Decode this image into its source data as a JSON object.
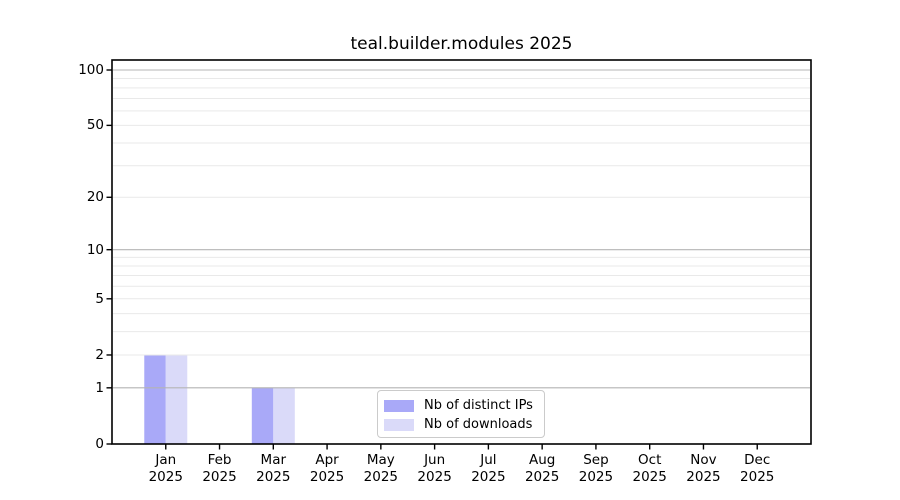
{
  "chart_data": {
    "type": "bar",
    "title": "teal.builder.modules 2025",
    "categories": [
      "Jan",
      "Feb",
      "Mar",
      "Apr",
      "May",
      "Jun",
      "Jul",
      "Aug",
      "Sep",
      "Oct",
      "Nov",
      "Dec"
    ],
    "x_year_label": "2025",
    "series": [
      {
        "name": "Nb of distinct IPs",
        "color": "#a9a9f8",
        "values": [
          2,
          0,
          1,
          0,
          0,
          0,
          0,
          0,
          0,
          0,
          0,
          0
        ]
      },
      {
        "name": "Nb of downloads",
        "color": "#dadaf9",
        "values": [
          2,
          0,
          1,
          0,
          0,
          0,
          0,
          0,
          0,
          0,
          0,
          0
        ]
      }
    ],
    "y_axis": {
      "scale": "log1p",
      "ticks": [
        0,
        1,
        2,
        5,
        10,
        20,
        50,
        100
      ],
      "major_gridlines": [
        1,
        10,
        100
      ],
      "minor_gridlines": [
        2,
        3,
        4,
        5,
        6,
        7,
        8,
        9,
        20,
        30,
        40,
        50,
        60,
        70,
        80,
        90
      ],
      "range": [
        0,
        100
      ]
    },
    "legend_position": "lower center",
    "grid": true,
    "colors": {
      "grid_major": "#b4b4b4",
      "grid_minor": "#e9e9e9",
      "spine": "#000000",
      "text": "#000000"
    }
  }
}
